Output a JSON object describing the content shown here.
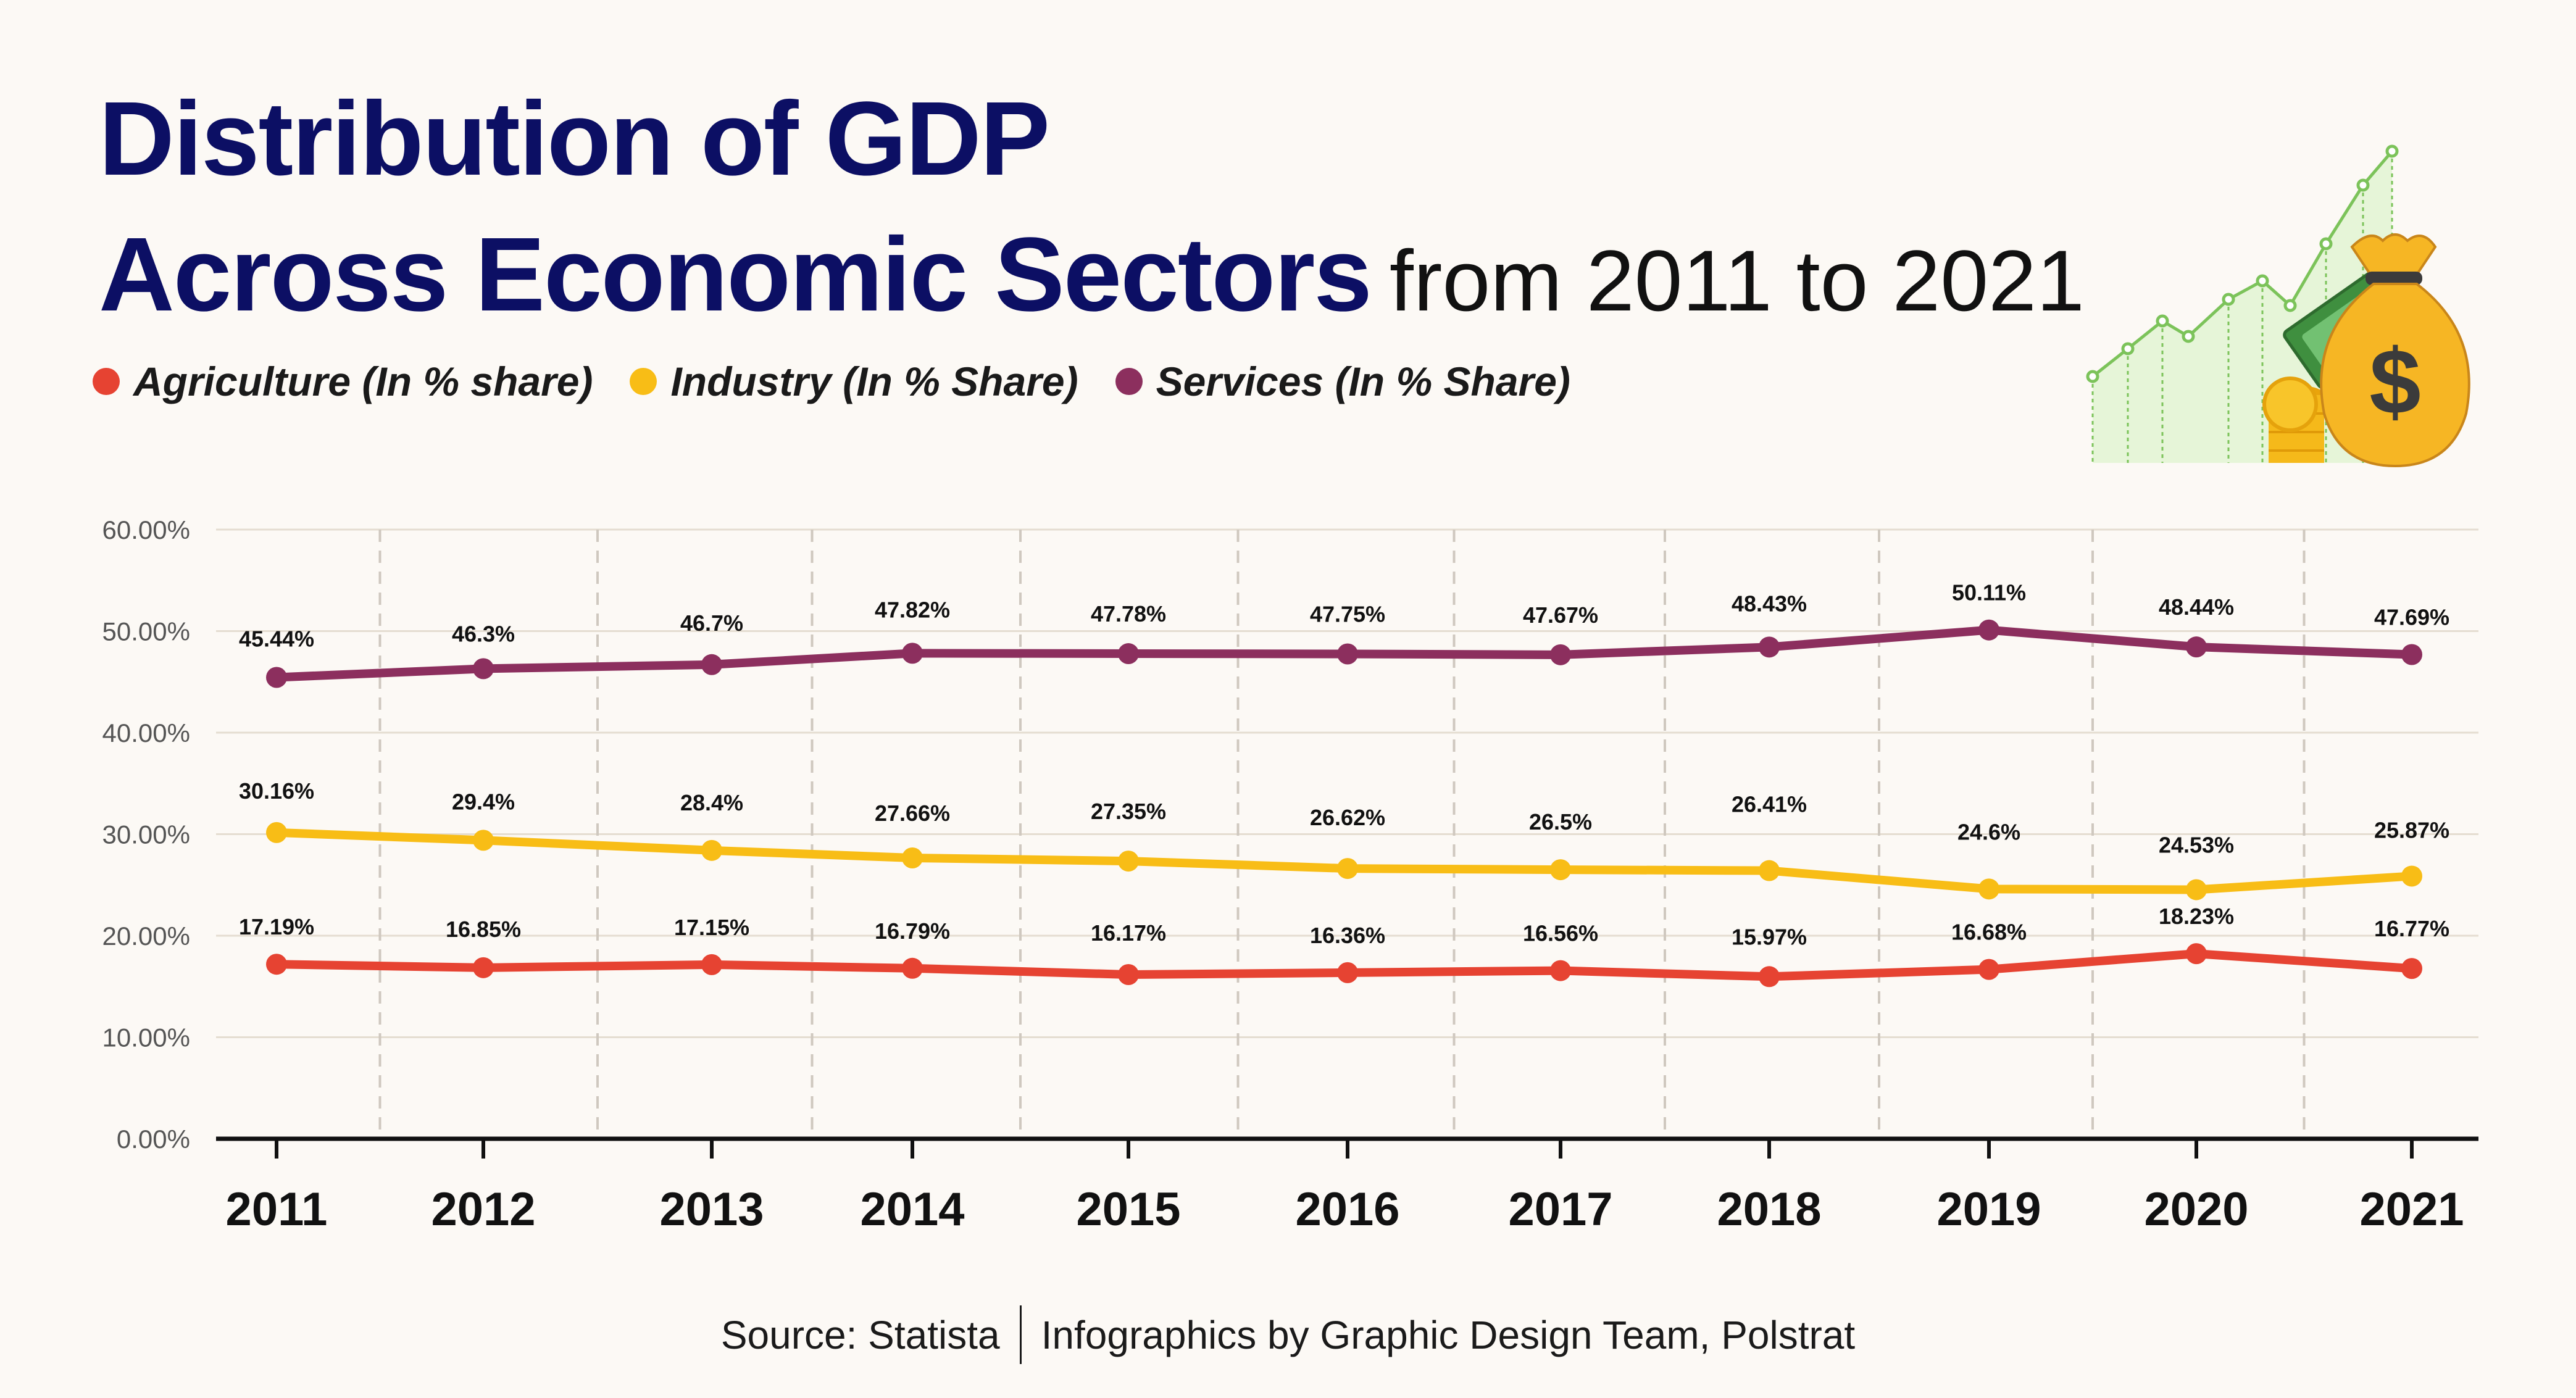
{
  "title": {
    "line1": "Distribution of GDP",
    "line2_bold": "Across Economic Sectors",
    "line2_rest": "from 2011 to 2021"
  },
  "legend": [
    {
      "label": "Agriculture (In % share)",
      "color": "#e64332"
    },
    {
      "label": "Industry (In % Share)",
      "color": "#f8bd16"
    },
    {
      "label": "Services (In % Share)",
      "color": "#8c2f5e"
    }
  ],
  "chart_data": {
    "type": "line",
    "title": "Distribution of GDP Across Economic Sectors from 2011 to 2021",
    "xlabel": "",
    "ylabel": "",
    "ylim": [
      0,
      60
    ],
    "y_ticks": [
      "0.00%",
      "10.00%",
      "20.00%",
      "30.00%",
      "40.00%",
      "50.00%",
      "60.00%"
    ],
    "categories": [
      "2011",
      "2012",
      "2013",
      "2014",
      "2015",
      "2016",
      "2017",
      "2018",
      "2019",
      "2020",
      "2021"
    ],
    "series": [
      {
        "name": "Agriculture (In % share)",
        "color": "#e64332",
        "values": [
          17.19,
          16.85,
          17.15,
          16.79,
          16.17,
          16.36,
          16.56,
          15.97,
          16.68,
          18.23,
          16.77
        ],
        "labels": [
          "17.19%",
          "16.85%",
          "17.15%",
          "16.79%",
          "16.17%",
          "16.36%",
          "16.56%",
          "15.97%",
          "16.68%",
          "18.23%",
          "16.77%"
        ]
      },
      {
        "name": "Industry (In % Share)",
        "color": "#f8bd16",
        "values": [
          30.16,
          29.4,
          28.4,
          27.66,
          27.35,
          26.62,
          26.5,
          26.41,
          24.6,
          24.53,
          25.87
        ],
        "labels": [
          "30.16%",
          "29.4%",
          "28.4%",
          "27.66%",
          "27.35%",
          "26.62%",
          "26.5%",
          "26.41%",
          "24.6%",
          "24.53%",
          "25.87%"
        ]
      },
      {
        "name": "Services (In % Share)",
        "color": "#8c2f5e",
        "values": [
          45.44,
          46.3,
          46.7,
          47.82,
          47.78,
          47.75,
          47.67,
          48.43,
          50.11,
          48.44,
          47.69
        ],
        "labels": [
          "45.44%",
          "46.3%",
          "46.7%",
          "47.82%",
          "47.78%",
          "47.75%",
          "47.67%",
          "48.43%",
          "50.11%",
          "48.44%",
          "47.69%"
        ]
      }
    ],
    "grid": "horizontal"
  },
  "footer": {
    "source": "Source: Statista",
    "credit": "Infographics by Graphic Design Team, Polstrat"
  },
  "illustration": {
    "icon": "money-bag-growth-icon",
    "bag_symbol": "$"
  }
}
